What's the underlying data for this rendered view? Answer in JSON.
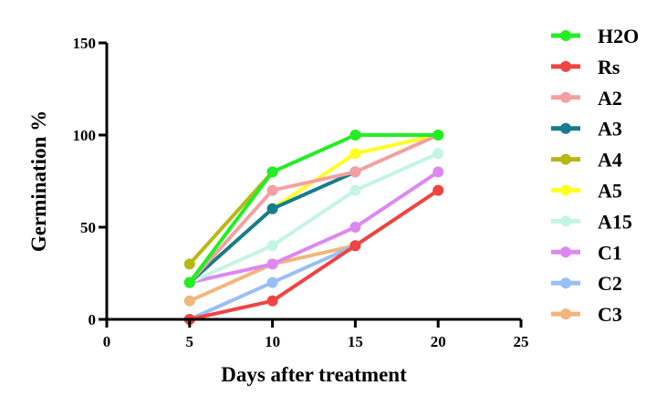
{
  "chart_data": {
    "type": "line",
    "title": "",
    "xlabel": "Days after treatment",
    "ylabel": "Germination %",
    "x": [
      5,
      10,
      15,
      20
    ],
    "xlim": [
      0,
      25
    ],
    "ylim": [
      0,
      150
    ],
    "xticks": [
      "0",
      "5",
      "10",
      "15",
      "20",
      "25"
    ],
    "yticks": [
      "0",
      "50",
      "100",
      "150"
    ],
    "grid": false,
    "legend_position": "right",
    "series": [
      {
        "name": "H2O",
        "color": "#22ee22",
        "values": [
          20,
          80,
          100,
          100
        ]
      },
      {
        "name": "Rs",
        "color": "#ee4444",
        "values": [
          0,
          10,
          40,
          70
        ]
      },
      {
        "name": "A2",
        "color": "#f4a0a0",
        "values": [
          20,
          70,
          80,
          100
        ]
      },
      {
        "name": "A3",
        "color": "#167d8c",
        "values": [
          20,
          60,
          80,
          null
        ]
      },
      {
        "name": "A4",
        "color": "#b8b814",
        "values": [
          30,
          80,
          null,
          null
        ]
      },
      {
        "name": "A5",
        "color": "#ffff22",
        "values": [
          20,
          60,
          90,
          100
        ]
      },
      {
        "name": "A15",
        "color": "#c4f4e4",
        "values": [
          20,
          40,
          70,
          90
        ]
      },
      {
        "name": "C1",
        "color": "#dd88f0",
        "values": [
          20,
          30,
          50,
          80
        ]
      },
      {
        "name": "C2",
        "color": "#99bff4",
        "values": [
          0,
          20,
          40,
          null
        ]
      },
      {
        "name": "C3",
        "color": "#f0b67c",
        "values": [
          10,
          30,
          40,
          null
        ]
      }
    ]
  }
}
